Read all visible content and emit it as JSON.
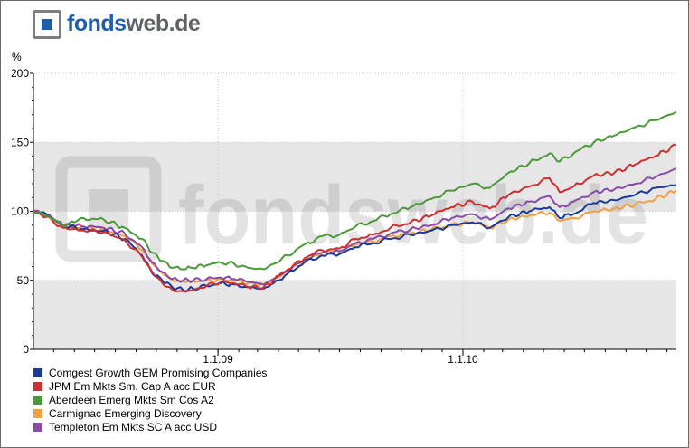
{
  "logo": {
    "part1": "fonds",
    "part2": "web.de"
  },
  "watermark": "fondsweb.de",
  "chart_data": {
    "type": "line",
    "ylabel": "%",
    "ylim": [
      0,
      200
    ],
    "yticks": [
      0,
      50,
      100,
      150,
      200
    ],
    "xlim": [
      "2008-04-01",
      "2010-11-15"
    ],
    "xticks": [
      {
        "date": "2009-01-01",
        "label": "1.1.09"
      },
      {
        "date": "2010-01-01",
        "label": "1.1.10"
      }
    ],
    "grid": "alternating-horizontal-bands",
    "legend": "bottom",
    "series": [
      {
        "name": "Comgest Growth GEM Promising Companies",
        "color": "#1a3a9a",
        "points": [
          [
            "2008-04-01",
            100
          ],
          [
            "2008-04-20",
            98
          ],
          [
            "2008-05-15",
            90
          ],
          [
            "2008-06-15",
            87
          ],
          [
            "2008-07-15",
            86
          ],
          [
            "2008-08-15",
            80
          ],
          [
            "2008-09-10",
            68
          ],
          [
            "2008-09-25",
            55
          ],
          [
            "2008-10-10",
            50
          ],
          [
            "2008-10-25",
            45
          ],
          [
            "2008-11-10",
            43
          ],
          [
            "2008-11-25",
            44
          ],
          [
            "2008-12-15",
            46
          ],
          [
            "2009-01-05",
            48
          ],
          [
            "2009-01-25",
            47
          ],
          [
            "2009-02-15",
            45
          ],
          [
            "2009-03-10",
            44
          ],
          [
            "2009-03-25",
            48
          ],
          [
            "2009-04-15",
            55
          ],
          [
            "2009-05-10",
            63
          ],
          [
            "2009-06-05",
            68
          ],
          [
            "2009-07-01",
            69
          ],
          [
            "2009-07-25",
            74
          ],
          [
            "2009-08-20",
            77
          ],
          [
            "2009-09-15",
            80
          ],
          [
            "2009-10-15",
            83
          ],
          [
            "2009-11-15",
            86
          ],
          [
            "2009-12-15",
            90
          ],
          [
            "2010-01-15",
            92
          ],
          [
            "2010-02-10",
            88
          ],
          [
            "2010-03-10",
            96
          ],
          [
            "2010-04-10",
            100
          ],
          [
            "2010-05-10",
            103
          ],
          [
            "2010-05-25",
            95
          ],
          [
            "2010-06-15",
            98
          ],
          [
            "2010-07-15",
            106
          ],
          [
            "2010-08-15",
            108
          ],
          [
            "2010-09-15",
            112
          ],
          [
            "2010-10-15",
            117
          ],
          [
            "2010-11-15",
            119
          ]
        ]
      },
      {
        "name": "JPM Em Mkts Sm. Cap A acc EUR",
        "color": "#cc3030",
        "points": [
          [
            "2008-04-01",
            100
          ],
          [
            "2008-04-20",
            96
          ],
          [
            "2008-05-15",
            88
          ],
          [
            "2008-06-15",
            86
          ],
          [
            "2008-07-15",
            85
          ],
          [
            "2008-08-15",
            79
          ],
          [
            "2008-09-10",
            67
          ],
          [
            "2008-09-25",
            56
          ],
          [
            "2008-10-10",
            48
          ],
          [
            "2008-10-25",
            43
          ],
          [
            "2008-11-10",
            42
          ],
          [
            "2008-11-25",
            43
          ],
          [
            "2008-12-15",
            46
          ],
          [
            "2009-01-05",
            49
          ],
          [
            "2009-01-25",
            48
          ],
          [
            "2009-02-15",
            45
          ],
          [
            "2009-03-10",
            45
          ],
          [
            "2009-03-25",
            50
          ],
          [
            "2009-04-15",
            58
          ],
          [
            "2009-05-10",
            66
          ],
          [
            "2009-06-05",
            72
          ],
          [
            "2009-07-01",
            73
          ],
          [
            "2009-07-25",
            80
          ],
          [
            "2009-08-20",
            83
          ],
          [
            "2009-09-15",
            88
          ],
          [
            "2009-10-15",
            92
          ],
          [
            "2009-11-15",
            97
          ],
          [
            "2009-12-15",
            103
          ],
          [
            "2010-01-15",
            107
          ],
          [
            "2010-02-10",
            102
          ],
          [
            "2010-03-10",
            112
          ],
          [
            "2010-04-10",
            118
          ],
          [
            "2010-05-10",
            124
          ],
          [
            "2010-05-25",
            114
          ],
          [
            "2010-06-15",
            118
          ],
          [
            "2010-07-15",
            126
          ],
          [
            "2010-08-15",
            128
          ],
          [
            "2010-09-15",
            134
          ],
          [
            "2010-10-15",
            140
          ],
          [
            "2010-11-15",
            148
          ]
        ]
      },
      {
        "name": "Aberdeen Emerg Mkts Sm Cos A2",
        "color": "#4a9a3a",
        "points": [
          [
            "2008-04-01",
            100
          ],
          [
            "2008-04-20",
            97
          ],
          [
            "2008-05-15",
            90
          ],
          [
            "2008-06-01",
            92
          ],
          [
            "2008-06-15",
            95
          ],
          [
            "2008-07-15",
            94
          ],
          [
            "2008-08-15",
            88
          ],
          [
            "2008-09-10",
            80
          ],
          [
            "2008-09-25",
            70
          ],
          [
            "2008-10-10",
            64
          ],
          [
            "2008-10-25",
            59
          ],
          [
            "2008-11-10",
            58
          ],
          [
            "2008-11-25",
            59
          ],
          [
            "2008-12-15",
            61
          ],
          [
            "2009-01-05",
            63
          ],
          [
            "2009-01-25",
            62
          ],
          [
            "2009-02-15",
            59
          ],
          [
            "2009-03-10",
            58
          ],
          [
            "2009-03-25",
            62
          ],
          [
            "2009-04-15",
            68
          ],
          [
            "2009-05-10",
            76
          ],
          [
            "2009-06-05",
            82
          ],
          [
            "2009-07-01",
            83
          ],
          [
            "2009-07-25",
            89
          ],
          [
            "2009-08-20",
            93
          ],
          [
            "2009-09-15",
            98
          ],
          [
            "2009-10-15",
            103
          ],
          [
            "2009-11-15",
            109
          ],
          [
            "2009-12-15",
            115
          ],
          [
            "2010-01-15",
            120
          ],
          [
            "2010-02-10",
            117
          ],
          [
            "2010-03-10",
            128
          ],
          [
            "2010-04-10",
            135
          ],
          [
            "2010-05-10",
            142
          ],
          [
            "2010-05-25",
            136
          ],
          [
            "2010-06-15",
            142
          ],
          [
            "2010-07-15",
            150
          ],
          [
            "2010-08-15",
            155
          ],
          [
            "2010-09-15",
            161
          ],
          [
            "2010-10-15",
            166
          ],
          [
            "2010-11-15",
            172
          ]
        ]
      },
      {
        "name": "Carmignac Emerging Discovery",
        "color": "#f0a040",
        "points": [
          [
            "2008-04-01",
            100
          ],
          [
            "2008-04-20",
            97
          ],
          [
            "2008-05-15",
            89
          ],
          [
            "2008-06-15",
            88
          ],
          [
            "2008-07-15",
            87
          ],
          [
            "2008-08-15",
            82
          ],
          [
            "2008-09-10",
            72
          ],
          [
            "2008-09-25",
            62
          ],
          [
            "2008-10-10",
            55
          ],
          [
            "2008-10-25",
            50
          ],
          [
            "2008-11-10",
            49
          ],
          [
            "2008-11-25",
            49
          ],
          [
            "2008-12-15",
            50
          ],
          [
            "2009-01-05",
            51
          ],
          [
            "2009-01-25",
            50
          ],
          [
            "2009-02-15",
            48
          ],
          [
            "2009-03-10",
            47
          ],
          [
            "2009-03-25",
            51
          ],
          [
            "2009-04-15",
            57
          ],
          [
            "2009-05-10",
            64
          ],
          [
            "2009-06-05",
            70
          ],
          [
            "2009-07-01",
            71
          ],
          [
            "2009-07-25",
            76
          ],
          [
            "2009-08-20",
            78
          ],
          [
            "2009-09-15",
            82
          ],
          [
            "2009-10-15",
            84
          ],
          [
            "2009-11-15",
            87
          ],
          [
            "2009-12-15",
            90
          ],
          [
            "2010-01-15",
            92
          ],
          [
            "2010-02-10",
            88
          ],
          [
            "2010-03-10",
            94
          ],
          [
            "2010-04-10",
            97
          ],
          [
            "2010-05-10",
            99
          ],
          [
            "2010-05-25",
            93
          ],
          [
            "2010-06-15",
            95
          ],
          [
            "2010-07-15",
            100
          ],
          [
            "2010-08-15",
            102
          ],
          [
            "2010-09-15",
            105
          ],
          [
            "2010-10-15",
            109
          ],
          [
            "2010-11-15",
            115
          ]
        ]
      },
      {
        "name": "Templeton Em Mkts SC A acc USD",
        "color": "#8a4aa8",
        "points": [
          [
            "2008-04-01",
            100
          ],
          [
            "2008-04-20",
            98
          ],
          [
            "2008-05-15",
            90
          ],
          [
            "2008-06-15",
            89
          ],
          [
            "2008-07-15",
            88
          ],
          [
            "2008-08-15",
            84
          ],
          [
            "2008-09-10",
            74
          ],
          [
            "2008-09-25",
            63
          ],
          [
            "2008-10-10",
            56
          ],
          [
            "2008-10-25",
            51
          ],
          [
            "2008-11-10",
            50
          ],
          [
            "2008-11-25",
            50
          ],
          [
            "2008-12-15",
            51
          ],
          [
            "2009-01-05",
            52
          ],
          [
            "2009-01-25",
            51
          ],
          [
            "2009-02-15",
            49
          ],
          [
            "2009-03-10",
            47
          ],
          [
            "2009-03-25",
            51
          ],
          [
            "2009-04-15",
            57
          ],
          [
            "2009-05-10",
            65
          ],
          [
            "2009-06-05",
            70
          ],
          [
            "2009-07-01",
            71
          ],
          [
            "2009-07-25",
            77
          ],
          [
            "2009-08-20",
            80
          ],
          [
            "2009-09-15",
            84
          ],
          [
            "2009-10-15",
            87
          ],
          [
            "2009-11-15",
            90
          ],
          [
            "2009-12-15",
            95
          ],
          [
            "2010-01-15",
            98
          ],
          [
            "2010-02-10",
            94
          ],
          [
            "2010-03-10",
            102
          ],
          [
            "2010-04-10",
            107
          ],
          [
            "2010-05-10",
            111
          ],
          [
            "2010-05-25",
            103
          ],
          [
            "2010-06-15",
            107
          ],
          [
            "2010-07-15",
            114
          ],
          [
            "2010-08-15",
            116
          ],
          [
            "2010-09-15",
            120
          ],
          [
            "2010-10-15",
            125
          ],
          [
            "2010-11-15",
            131
          ]
        ]
      }
    ]
  }
}
